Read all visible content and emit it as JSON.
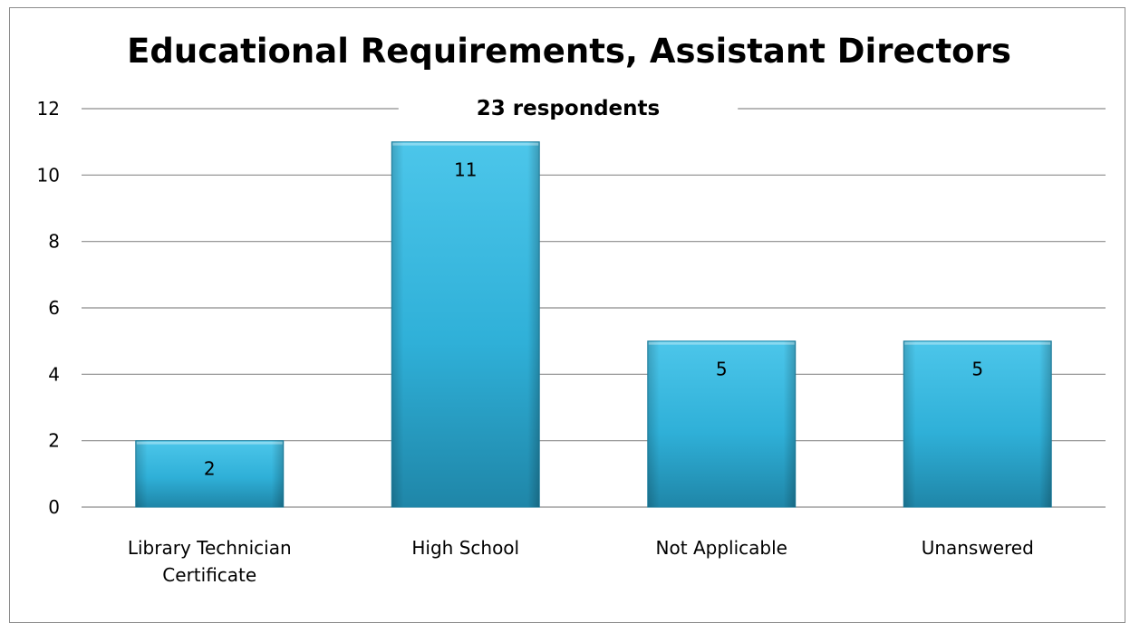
{
  "chart_data": {
    "type": "bar",
    "title": "Educational Requirements, Assistant Directors",
    "subtitle": "23 respondents",
    "categories": [
      [
        "Library Technician",
        "Certificate"
      ],
      [
        "High School"
      ],
      [
        "Not Applicable"
      ],
      [
        "Unanswered"
      ]
    ],
    "values": [
      2,
      11,
      5,
      5
    ],
    "data_labels": [
      "2",
      "11",
      "5",
      "5"
    ],
    "ylim": [
      0,
      12
    ],
    "yticks": [
      0,
      2,
      4,
      6,
      8,
      10,
      12
    ],
    "grid": true,
    "legend": "none",
    "colors": {
      "bar_light": "#4cc6ea",
      "bar_mid": "#2fb0d8",
      "bar_dark": "#1f86a8",
      "gridline": "#8c8c8c",
      "frame": "#8c8c8c"
    }
  }
}
